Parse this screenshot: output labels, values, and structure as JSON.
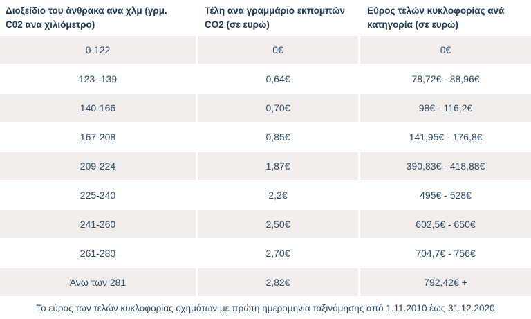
{
  "colors": {
    "background": "#ffffff",
    "stripe_row": "#f2ecea",
    "header_text": "#1c3a58",
    "body_text": "#2b4c6b"
  },
  "chart_data": {
    "type": "table",
    "columns": [
      "Διοξείδιο του άνθρακα ανα χλμ (γρμ. C02 ανα χιλιόμετρο)",
      "Τέλη ανα γραμμάριο εκπομπών CO2 (σε ευρώ)",
      "Εύρος τελών κυκλοφορίας ανά κατηγορία (σε ευρώ)"
    ],
    "rows": [
      [
        "0-122",
        "0€",
        "0€"
      ],
      [
        "123- 139",
        "0,64€",
        "78,72€ - 88,96€"
      ],
      [
        "140-166",
        "0,70€",
        "98€ - 116,2€"
      ],
      [
        "167-208",
        "0,85€",
        "141,95€ - 176,8€"
      ],
      [
        "209-224",
        "1,87€",
        "390,83€ - 418,88€"
      ],
      [
        "225-240",
        "2,2€",
        "495€ - 528€"
      ],
      [
        "241-260",
        "2,50€",
        "602,5€ - 650€"
      ],
      [
        "261-280",
        "2,70€",
        "704,7€ - 756€"
      ],
      [
        "Άνω των 281",
        "2,82€",
        "792,42€ +"
      ]
    ],
    "footnote": "Το εύρος των τελών κυκλοφορίας οχημάτων με πρώτη ημερομηνία ταξινόμησης από 1.11.2010 έως 31.12.2020",
    "layout": {
      "striped": "odd-data-rows",
      "header_style": "bold, left-aligned, white background",
      "cell_alignment": "center"
    }
  }
}
